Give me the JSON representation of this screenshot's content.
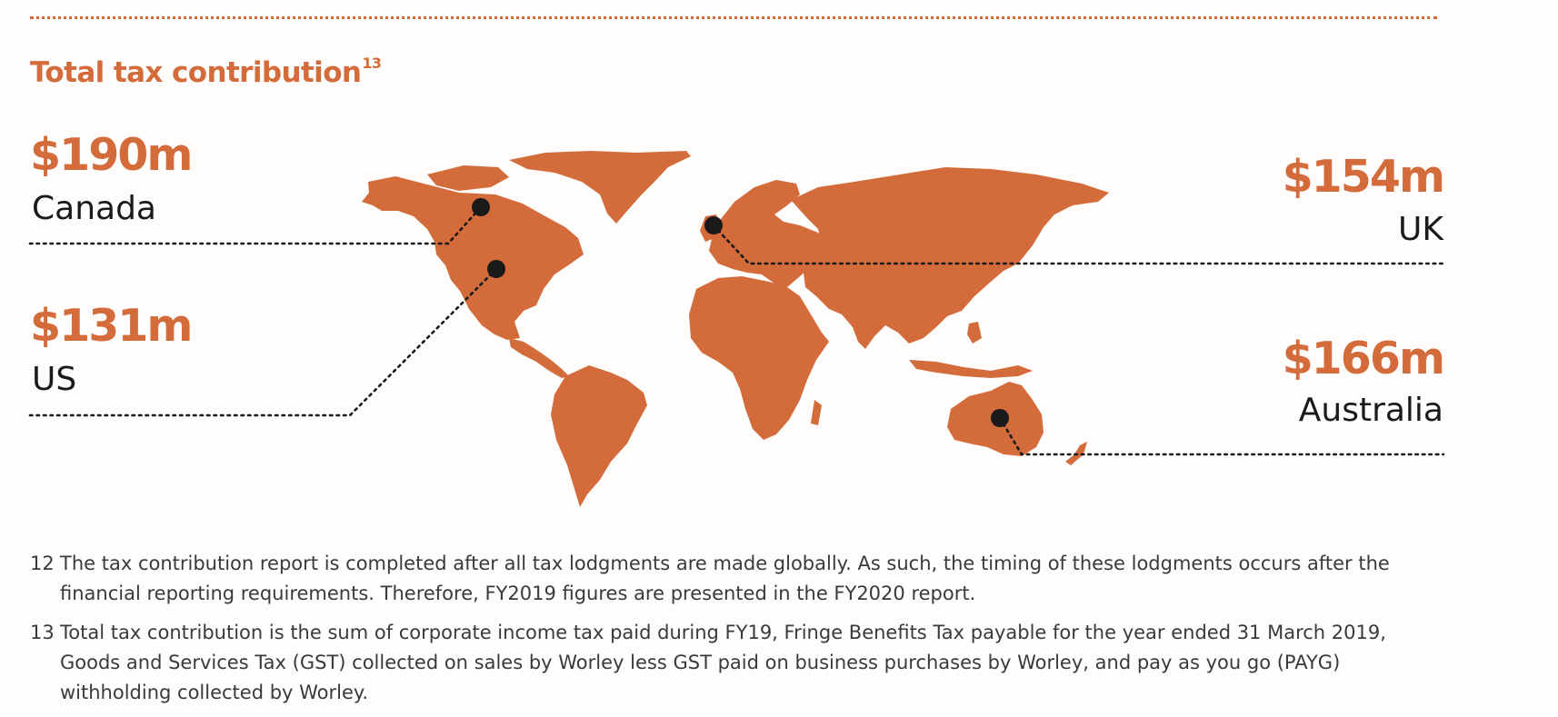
{
  "title": "Total tax contribution",
  "title_sup": "13",
  "colors": {
    "accent": "#d46b3b",
    "text": "#1a1a1a",
    "marker": "#1a1a1a"
  },
  "locations": [
    {
      "amount": "$190m",
      "country": "Canada"
    },
    {
      "amount": "$131m",
      "country": "US"
    },
    {
      "amount": "$154m",
      "country": "UK"
    },
    {
      "amount": "$166m",
      "country": "Australia"
    }
  ],
  "footnotes": [
    {
      "num": "12",
      "text": "The tax contribution report is completed after all tax lodgments are made globally. As such, the timing of these lodgments occurs after the financial reporting requirements. Therefore, FY2019 figures are presented in the FY2020 report."
    },
    {
      "num": "13",
      "text": "Total tax contribution is the sum of corporate income tax paid during FY19, Fringe Benefits Tax payable for the year ended 31 March 2019, Goods and Services Tax (GST) collected on sales by Worley less GST paid on business purchases by Worley, and pay as you go (PAYG) withholding collected by Worley."
    }
  ]
}
